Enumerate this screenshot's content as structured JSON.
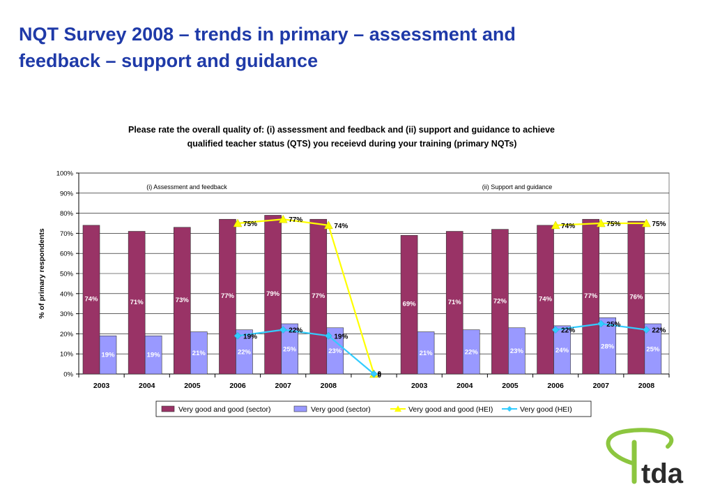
{
  "page": {
    "title_line1": "NQT Survey 2008 – trends in primary – assessment and",
    "title_line2": "feedback – support and guidance"
  },
  "chart_data": {
    "type": "bar",
    "title_line1": "Please rate the overall quality of: (i) assessment and feedback and (ii) support and guidance to achieve",
    "title_line2": "qualified teacher status (QTS) you receievd during your training (primary NQTs)",
    "ylabel": "% of primary respondents",
    "xlabel": "",
    "ylim": [
      0,
      100
    ],
    "yticks": [
      "0%",
      "10%",
      "20%",
      "30%",
      "40%",
      "50%",
      "60%",
      "70%",
      "80%",
      "90%",
      "100%"
    ],
    "grid": true,
    "legend_position": "bottom",
    "categories": [
      "2003",
      "2004",
      "2005",
      "2006",
      "2007",
      "2008",
      "",
      "2003",
      "2004",
      "2005",
      "2006",
      "2007",
      "2008"
    ],
    "panel_labels": [
      "(i) Assessment and feedback",
      "(ii) Support and guidance"
    ],
    "series": [
      {
        "name": "Very good and good (sector)",
        "kind": "bar",
        "color": "#993366",
        "values": [
          74,
          71,
          73,
          77,
          79,
          77,
          null,
          69,
          71,
          72,
          74,
          77,
          76
        ],
        "labels": [
          "74%",
          "71%",
          "73%",
          "77%",
          "79%",
          "77%",
          "",
          "69%",
          "71%",
          "72%",
          "74%",
          "77%",
          "76%"
        ]
      },
      {
        "name": "Very good (sector)",
        "kind": "bar",
        "color": "#9999ff",
        "values": [
          19,
          19,
          21,
          22,
          25,
          23,
          null,
          21,
          22,
          23,
          24,
          28,
          25
        ],
        "labels": [
          "19%",
          "19%",
          "21%",
          "22%",
          "25%",
          "23%",
          "",
          "21%",
          "22%",
          "23%",
          "24%",
          "28%",
          "25%"
        ]
      },
      {
        "name": "Very good and good (HEI)",
        "kind": "line",
        "color": "#ffff00",
        "values": [
          null,
          null,
          null,
          75,
          77,
          74,
          0,
          null,
          null,
          null,
          74,
          75,
          75
        ],
        "labels": [
          "",
          "",
          "",
          "75%",
          "77%",
          "74%",
          "0",
          "",
          "",
          "",
          "74%",
          "75%",
          "75%"
        ]
      },
      {
        "name": "Very good (HEI)",
        "kind": "line",
        "color": "#33ccff",
        "values": [
          null,
          null,
          null,
          19,
          22,
          19,
          0,
          null,
          null,
          null,
          22,
          25,
          22
        ],
        "labels": [
          "",
          "",
          "",
          "19%",
          "22%",
          "19%",
          "0",
          "",
          "",
          "",
          "22%",
          "25%",
          "22%"
        ]
      }
    ]
  },
  "logo": {
    "text": "tda",
    "color_ring": "#8cc63f",
    "color_text": "#2b2b2b"
  }
}
